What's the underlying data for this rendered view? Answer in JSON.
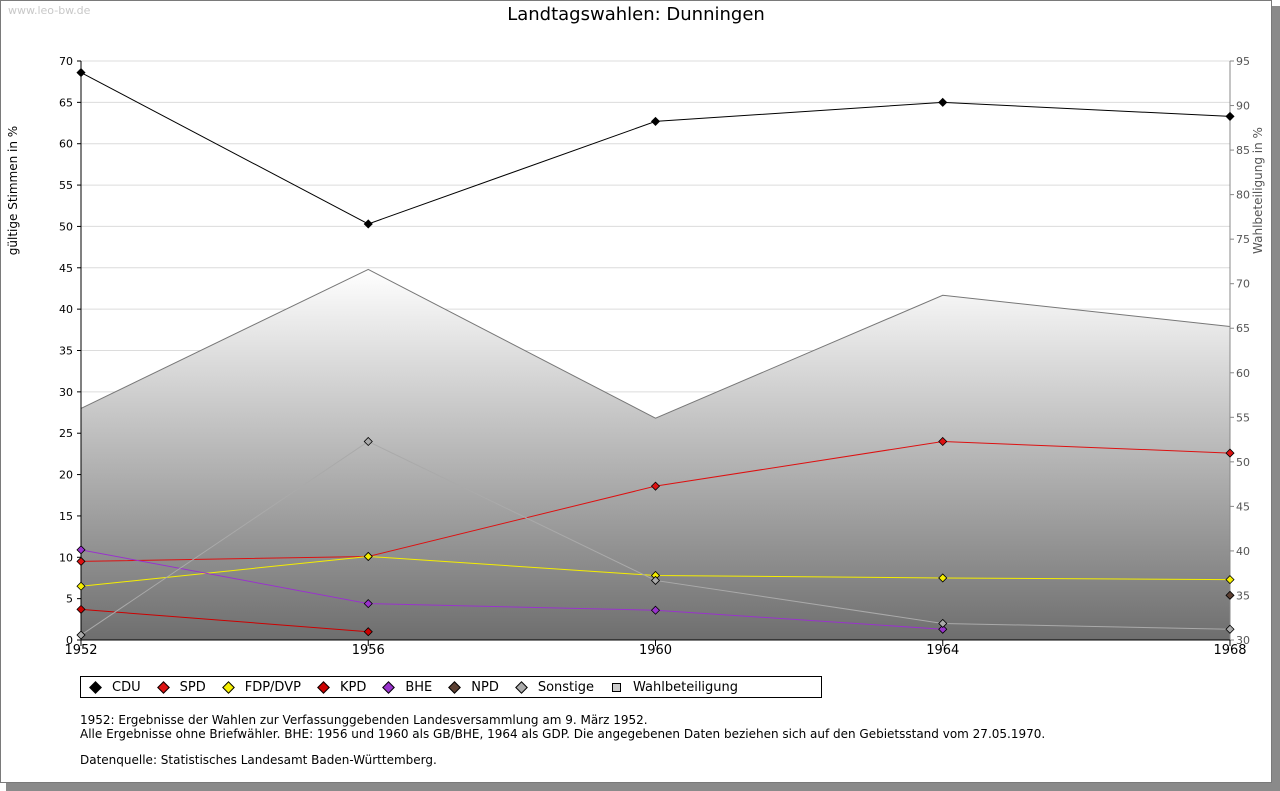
{
  "watermark": "www.leo-bw.de",
  "chart_data": {
    "type": "line",
    "title": "Landtagswahlen: Dunningen",
    "ylabel": "gültige Stimmen in %",
    "y2label": "Wahlbeteiligung in %",
    "x": [
      1952,
      1956,
      1960,
      1964,
      1968
    ],
    "xlim": [
      1952,
      1968
    ],
    "ylim": [
      0,
      70
    ],
    "y2lim": [
      30,
      95
    ],
    "yticks": [
      0,
      5,
      10,
      15,
      20,
      25,
      30,
      35,
      40,
      45,
      50,
      55,
      60,
      65,
      70
    ],
    "y2ticks": [
      30,
      35,
      40,
      45,
      50,
      55,
      60,
      65,
      70,
      75,
      80,
      85,
      90,
      95
    ],
    "grid": true,
    "series": [
      {
        "name": "CDU",
        "color": "#000000",
        "values": [
          68.6,
          50.3,
          62.7,
          65.0,
          63.3
        ]
      },
      {
        "name": "SPD",
        "color": "#dd1111",
        "values": [
          9.5,
          10.1,
          18.6,
          24.0,
          22.6
        ]
      },
      {
        "name": "FDP/DVP",
        "color": "#f5ee00",
        "values": [
          6.5,
          10.1,
          7.8,
          7.5,
          7.3
        ]
      },
      {
        "name": "KPD",
        "color": "#cc0000",
        "values": [
          3.7,
          1.0,
          null,
          null,
          null
        ]
      },
      {
        "name": "BHE",
        "color": "#9933cc",
        "values": [
          10.9,
          4.4,
          3.6,
          1.3,
          null
        ]
      },
      {
        "name": "NPD",
        "color": "#5c4033",
        "values": [
          null,
          null,
          null,
          null,
          5.4
        ]
      },
      {
        "name": "Sonstige",
        "color": "#aaaaaa",
        "values": [
          0.6,
          24.0,
          7.2,
          2.0,
          1.3
        ]
      }
    ],
    "turnout": {
      "name": "Wahlbeteiligung",
      "values": [
        56.0,
        71.6,
        54.9,
        68.7,
        65.2
      ]
    },
    "legend_position": "bottom-left"
  },
  "notes": {
    "line1": "1952: Ergebnisse der Wahlen zur Verfassunggebenden Landesversammlung am 9. März 1952.",
    "line2": "Alle Ergebnisse ohne Briefwähler. BHE: 1956 und 1960 als GB/BHE, 1964 als GDP. Die angegebenen Daten beziehen sich auf den Gebietsstand vom 27.05.1970.",
    "line3": "Datenquelle: Statistisches Landesamt Baden-Württemberg."
  }
}
